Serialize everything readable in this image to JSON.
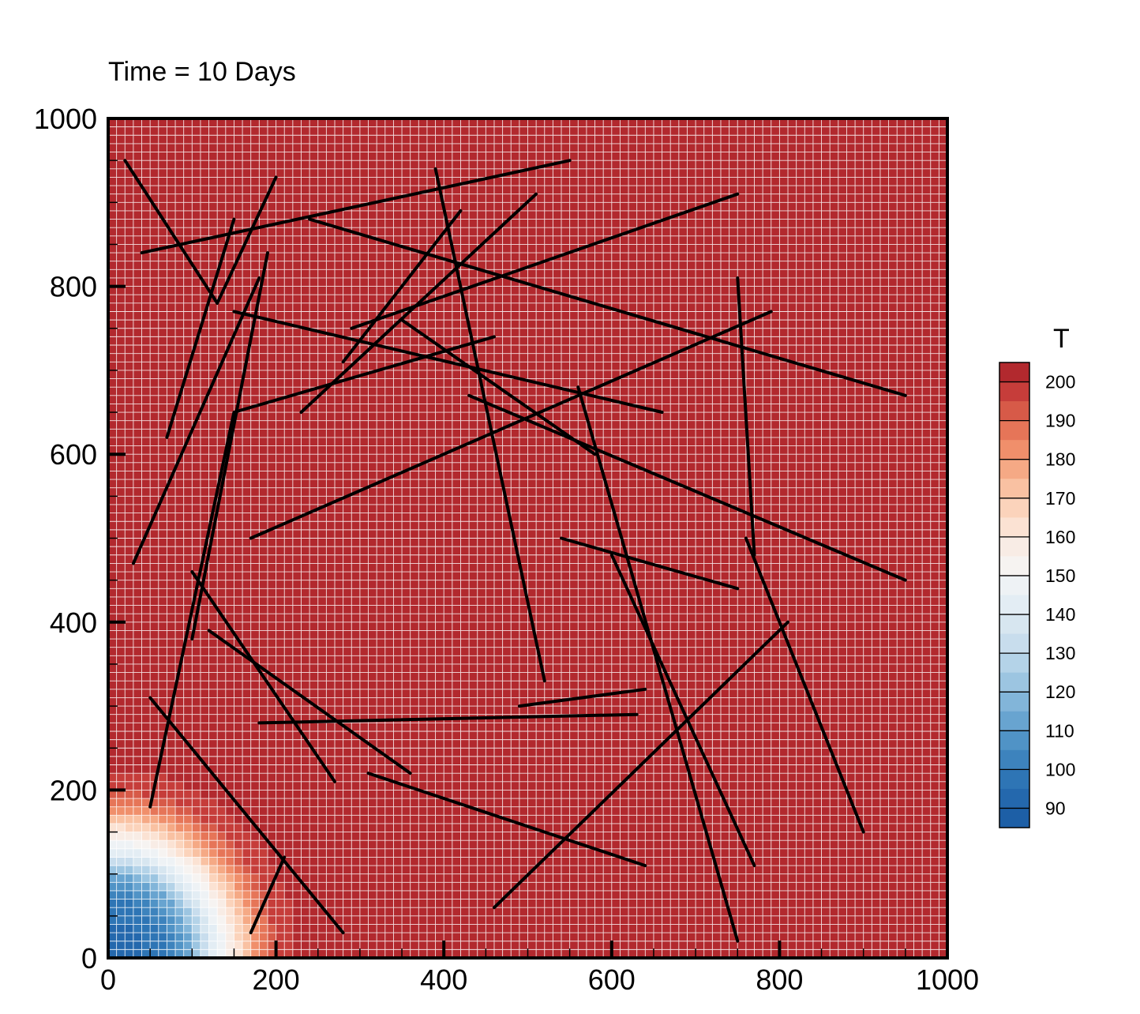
{
  "chart_data": {
    "type": "heatmap",
    "title": "Time = 10 Days",
    "xlabel": "",
    "ylabel": "",
    "xlim": [
      0,
      1000
    ],
    "ylim": [
      0,
      1000
    ],
    "x_ticks": [
      0,
      200,
      400,
      600,
      800,
      1000
    ],
    "y_ticks": [
      0,
      200,
      400,
      600,
      800,
      1000
    ],
    "grid_cell_size": 10,
    "field": {
      "variable": "T",
      "min_value": 90,
      "max_value": 200,
      "source_corner": [
        0,
        0
      ],
      "radial_profile": [
        {
          "r": 0,
          "T": 92
        },
        {
          "r": 40,
          "T": 94
        },
        {
          "r": 70,
          "T": 100
        },
        {
          "r": 100,
          "T": 115
        },
        {
          "r": 125,
          "T": 140
        },
        {
          "r": 150,
          "T": 160
        },
        {
          "r": 175,
          "T": 180
        },
        {
          "r": 200,
          "T": 195
        },
        {
          "r": 225,
          "T": 200
        }
      ]
    },
    "colorbar": {
      "title": "T",
      "tick_labels": [
        "200",
        "190",
        "180",
        "170",
        "160",
        "150",
        "140",
        "130",
        "120",
        "110",
        "100",
        "90"
      ],
      "bands": [
        {
          "from": 200,
          "to": 205,
          "color": "#b2292e"
        },
        {
          "from": 195,
          "to": 200,
          "color": "#c63d3a"
        },
        {
          "from": 190,
          "to": 195,
          "color": "#d75a48"
        },
        {
          "from": 185,
          "to": 190,
          "color": "#e67558"
        },
        {
          "from": 180,
          "to": 185,
          "color": "#f08f6b"
        },
        {
          "from": 175,
          "to": 180,
          "color": "#f5a985"
        },
        {
          "from": 170,
          "to": 175,
          "color": "#f9c1a2"
        },
        {
          "from": 165,
          "to": 170,
          "color": "#fbd3bb"
        },
        {
          "from": 160,
          "to": 165,
          "color": "#fbe2d3"
        },
        {
          "from": 155,
          "to": 160,
          "color": "#f8ece5"
        },
        {
          "from": 150,
          "to": 155,
          "color": "#f6f3f1"
        },
        {
          "from": 145,
          "to": 150,
          "color": "#eef2f5"
        },
        {
          "from": 140,
          "to": 145,
          "color": "#e3edf4"
        },
        {
          "from": 135,
          "to": 140,
          "color": "#d7e6f0"
        },
        {
          "from": 130,
          "to": 135,
          "color": "#c8dded"
        },
        {
          "from": 125,
          "to": 130,
          "color": "#b4d3e8"
        },
        {
          "from": 120,
          "to": 125,
          "color": "#9cc5e1"
        },
        {
          "from": 115,
          "to": 120,
          "color": "#82b5d9"
        },
        {
          "from": 110,
          "to": 115,
          "color": "#68a4d0"
        },
        {
          "from": 105,
          "to": 110,
          "color": "#5093c6"
        },
        {
          "from": 100,
          "to": 105,
          "color": "#3d83bd"
        },
        {
          "from": 95,
          "to": 100,
          "color": "#2e75b5"
        },
        {
          "from": 90,
          "to": 95,
          "color": "#2468ad"
        },
        {
          "from": 85,
          "to": 90,
          "color": "#1d5fa6"
        }
      ]
    },
    "fractures": [
      [
        20,
        950,
        130,
        780
      ],
      [
        40,
        840,
        550,
        950
      ],
      [
        130,
        780,
        200,
        930
      ],
      [
        70,
        620,
        150,
        880
      ],
      [
        30,
        470,
        180,
        810
      ],
      [
        100,
        380,
        190,
        840
      ],
      [
        50,
        180,
        150,
        650,
        460,
        740
      ],
      [
        170,
        500,
        790,
        770
      ],
      [
        240,
        880,
        950,
        670
      ],
      [
        290,
        750,
        750,
        910
      ],
      [
        150,
        770,
        660,
        650
      ],
      [
        230,
        650,
        510,
        910
      ],
      [
        280,
        710,
        420,
        890
      ],
      [
        350,
        760,
        580,
        600
      ],
      [
        390,
        940,
        520,
        330
      ],
      [
        430,
        670,
        950,
        450
      ],
      [
        560,
        680,
        750,
        20
      ],
      [
        750,
        810,
        770,
        480
      ],
      [
        760,
        500,
        900,
        150
      ],
      [
        540,
        500,
        750,
        440
      ],
      [
        600,
        480,
        770,
        110
      ],
      [
        460,
        60,
        810,
        400
      ],
      [
        310,
        220,
        640,
        110
      ],
      [
        180,
        280,
        630,
        290
      ],
      [
        490,
        300,
        640,
        320
      ],
      [
        100,
        460,
        270,
        210
      ],
      [
        120,
        390,
        360,
        220
      ],
      [
        50,
        310,
        280,
        30
      ],
      [
        170,
        30,
        210,
        120
      ]
    ]
  }
}
